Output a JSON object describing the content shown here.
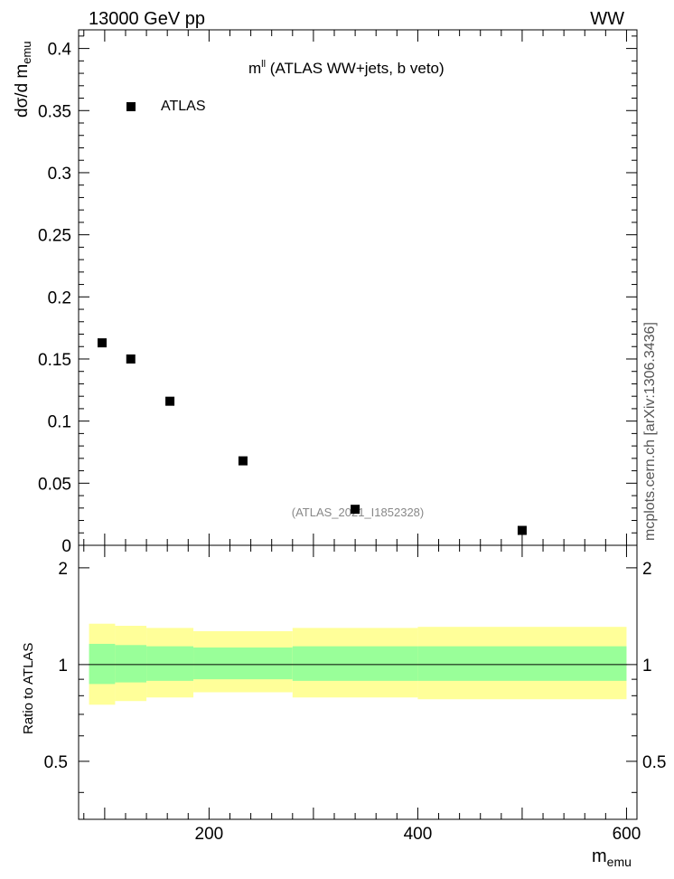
{
  "header": {
    "left_label": "13000 GeV pp",
    "right_label": "WW",
    "side_label": "mcplots.cern.ch [arXiv:1306.3436]"
  },
  "chart_data": {
    "type": "scatter",
    "title_main": "m",
    "title_sup": "ll",
    "title_rest": " (ATLAS WW+jets, b veto)",
    "watermark": "(ATLAS_2021_I1852328)",
    "ylabel_main": "dσ/d m",
    "ylabel_sub": "emu",
    "xlabel_main": "m",
    "xlabel_sub": "emu",
    "ratio_ylabel": "Ratio to ATLAS",
    "legend": [
      {
        "name": "ATLAS",
        "marker": "square",
        "color": "#000000"
      }
    ],
    "xlim": [
      75,
      610
    ],
    "ylim": [
      0,
      0.415
    ],
    "ratio_ylim": [
      0.33,
      2.35
    ],
    "x_ticks": [
      "200",
      "400",
      "600"
    ],
    "x_tick_values": [
      200,
      400,
      600
    ],
    "y_ticks": [
      "0",
      "0.05",
      "0.1",
      "0.15",
      "0.2",
      "0.25",
      "0.3",
      "0.35",
      "0.4"
    ],
    "y_tick_values": [
      0,
      0.05,
      0.1,
      0.15,
      0.2,
      0.25,
      0.3,
      0.35,
      0.4
    ],
    "ratio_ticks": [
      "0.5",
      "1",
      "2"
    ],
    "ratio_tick_values": [
      0.5,
      1,
      2
    ],
    "series": [
      {
        "name": "ATLAS",
        "x": [
          97.5,
          125,
          162.5,
          232.5,
          340,
          500
        ],
        "y": [
          0.163,
          0.15,
          0.116,
          0.068,
          0.029,
          0.012
        ]
      }
    ],
    "ratio_bands": {
      "bin_edges": [
        85,
        110,
        140,
        185,
        280,
        400,
        600
      ],
      "inner_low": [
        0.87,
        0.88,
        0.89,
        0.9,
        0.89,
        0.89
      ],
      "inner_high": [
        1.16,
        1.15,
        1.14,
        1.13,
        1.14,
        1.14
      ],
      "outer_low": [
        0.75,
        0.77,
        0.79,
        0.82,
        0.79,
        0.78
      ],
      "outer_high": [
        1.34,
        1.32,
        1.3,
        1.27,
        1.3,
        1.31
      ]
    },
    "colors": {
      "inner_band": "#99ff99",
      "outer_band": "#ffff99",
      "marker": "#000000",
      "watermark": "#888888"
    }
  }
}
